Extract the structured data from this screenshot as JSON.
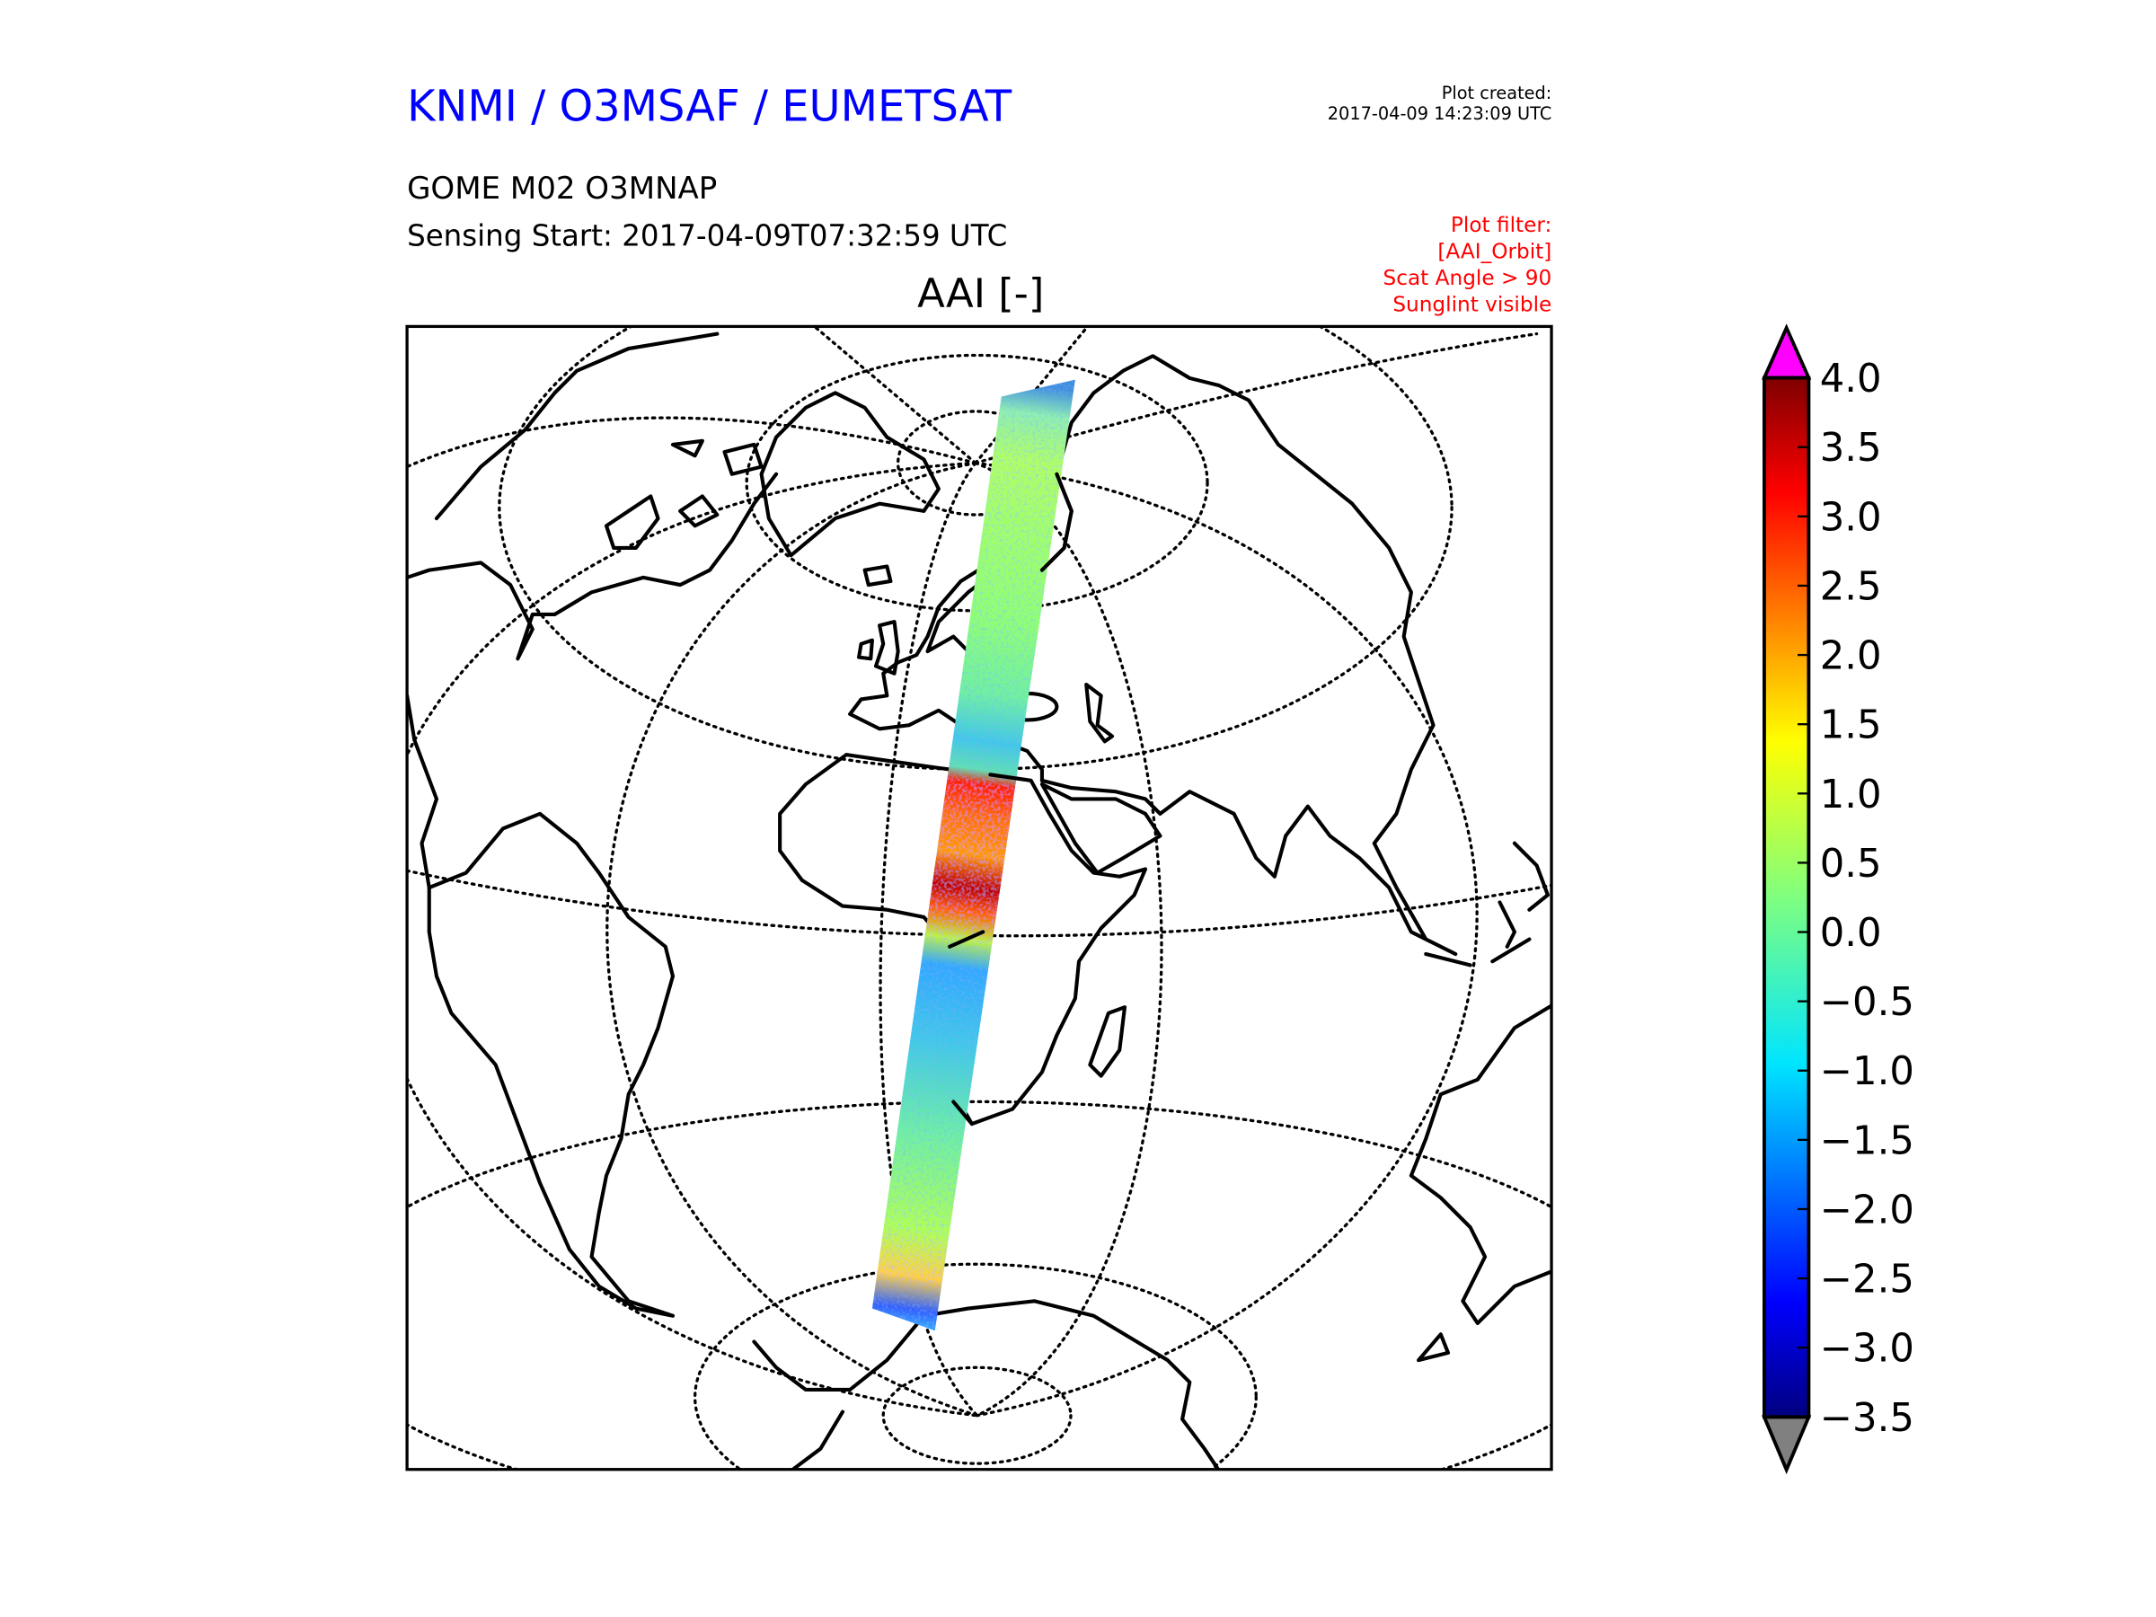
{
  "header": {
    "agency": "KNMI / O3MSAF / EUMETSAT",
    "created_label": "Plot created:",
    "created_value": "2017-04-09 14:23:09 UTC",
    "product": "GOME M02 O3MNAP",
    "sensing_start": "Sensing Start: 2017-04-09T07:32:59 UTC",
    "filter_lines": [
      "Plot filter:",
      "[AAI_Orbit]",
      "Scat Angle > 90",
      "Sunglint visible"
    ]
  },
  "colors": {
    "agency": "#0000ff",
    "filter": "#ff0000",
    "over": "#ff00ff",
    "under": "#808080"
  },
  "chart_data": {
    "type": "heatmap",
    "title": "AAI [-]",
    "projection": "azimuthal map, orbit swath from Arctic to Antarctica over Europe/Africa",
    "colormap": "jet",
    "vmin": -3.5,
    "vmax": 4.0,
    "extend": "both",
    "colorbar_ticks": [
      4.0,
      3.5,
      3.0,
      2.5,
      2.0,
      1.5,
      1.0,
      0.5,
      0.0,
      -0.5,
      -1.0,
      -1.5,
      -2.0,
      -2.5,
      -3.0,
      -3.5
    ],
    "colorbar_tick_labels": [
      "4.0",
      "3.5",
      "3.0",
      "2.5",
      "2.0",
      "1.5",
      "1.0",
      "0.5",
      "0.0",
      "−0.5",
      "−1.0",
      "−1.5",
      "−2.0",
      "−2.5",
      "−3.0",
      "−3.5"
    ],
    "swath_highlights": "AAI 2.5–4.0 over North Africa (Sahara), ~0 to 1 elsewhere, −1 to −2 speckles at swath edges"
  }
}
